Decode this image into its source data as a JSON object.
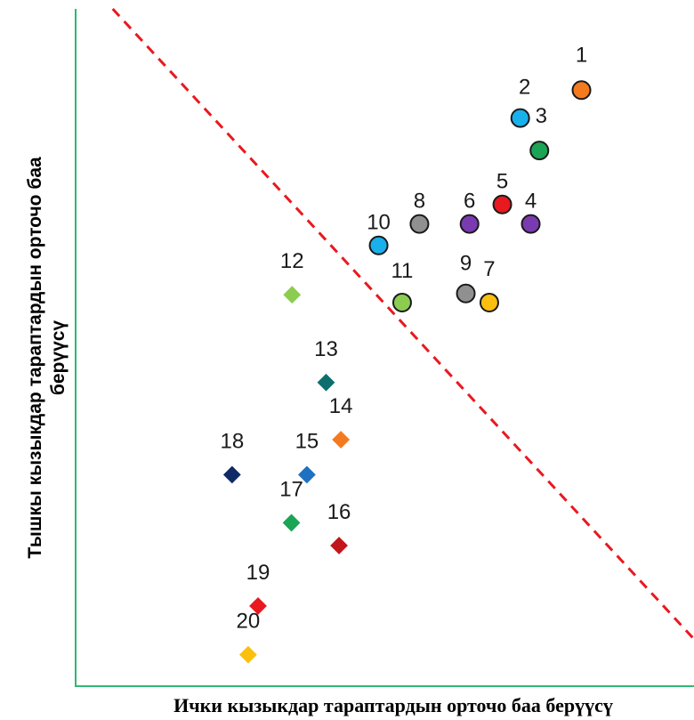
{
  "chart_data": {
    "type": "scatter",
    "title": "",
    "xlabel": "Ички кызыкдар тараптардын орточо баа берүүсү",
    "ylabel_line1": "Тышкы кызыкдар тараптардын орточо баа",
    "ylabel_line2": "берүүсү",
    "xlim": [
      0,
      100
    ],
    "ylim": [
      0,
      100
    ],
    "grid": false,
    "axis_color": "#2eb872",
    "reference_line": {
      "style": "dashed",
      "color": "#e8191f",
      "from": [
        6,
        100
      ],
      "to": [
        100,
        3
      ]
    },
    "points": [
      {
        "label": "1",
        "x": 81.8,
        "y": 87.5,
        "shape": "circle",
        "color": "#f47a20"
      },
      {
        "label": "2",
        "x": 71.9,
        "y": 83.2,
        "shape": "circle",
        "color": "#1ab0ec"
      },
      {
        "label": "3",
        "x": 75.0,
        "y": 78.2,
        "shape": "circle",
        "color": "#1aa455"
      },
      {
        "label": "4",
        "x": 73.6,
        "y": 66.9,
        "shape": "circle",
        "color": "#7a3bb0"
      },
      {
        "label": "5",
        "x": 69.0,
        "y": 69.9,
        "shape": "circle",
        "color": "#e8191f"
      },
      {
        "label": "6",
        "x": 63.7,
        "y": 66.9,
        "shape": "circle",
        "color": "#7a3bb0"
      },
      {
        "label": "7",
        "x": 66.9,
        "y": 54.8,
        "shape": "circle",
        "color": "#fbbf10"
      },
      {
        "label": "8",
        "x": 55.6,
        "y": 66.9,
        "shape": "circle",
        "color": "#909090"
      },
      {
        "label": "9",
        "x": 63.1,
        "y": 56.2,
        "shape": "circle",
        "color": "#909090"
      },
      {
        "label": "10",
        "x": 49.0,
        "y": 63.6,
        "shape": "circle",
        "color": "#1ab0ec"
      },
      {
        "label": "11",
        "x": 52.8,
        "y": 54.8,
        "shape": "circle",
        "color": "#8ccc50"
      },
      {
        "label": "12",
        "x": 35.0,
        "y": 56.0,
        "shape": "diamond",
        "color": "#8ccc50"
      },
      {
        "label": "13",
        "x": 40.5,
        "y": 42.5,
        "shape": "diamond",
        "color": "#0e6e6e"
      },
      {
        "label": "14",
        "x": 42.9,
        "y": 33.7,
        "shape": "diamond",
        "color": "#f47a20"
      },
      {
        "label": "15",
        "x": 37.4,
        "y": 28.3,
        "shape": "diamond",
        "color": "#1f70c1"
      },
      {
        "label": "16",
        "x": 42.6,
        "y": 17.4,
        "shape": "diamond",
        "color": "#c0161c"
      },
      {
        "label": "17",
        "x": 34.9,
        "y": 20.9,
        "shape": "diamond",
        "color": "#1aa455"
      },
      {
        "label": "18",
        "x": 25.3,
        "y": 28.3,
        "shape": "diamond",
        "color": "#0f2a66"
      },
      {
        "label": "19",
        "x": 29.5,
        "y": 8.1,
        "shape": "diamond",
        "color": "#e8191f"
      },
      {
        "label": "20",
        "x": 27.9,
        "y": 0.6,
        "shape": "diamond",
        "color": "#fbbf10"
      }
    ]
  }
}
